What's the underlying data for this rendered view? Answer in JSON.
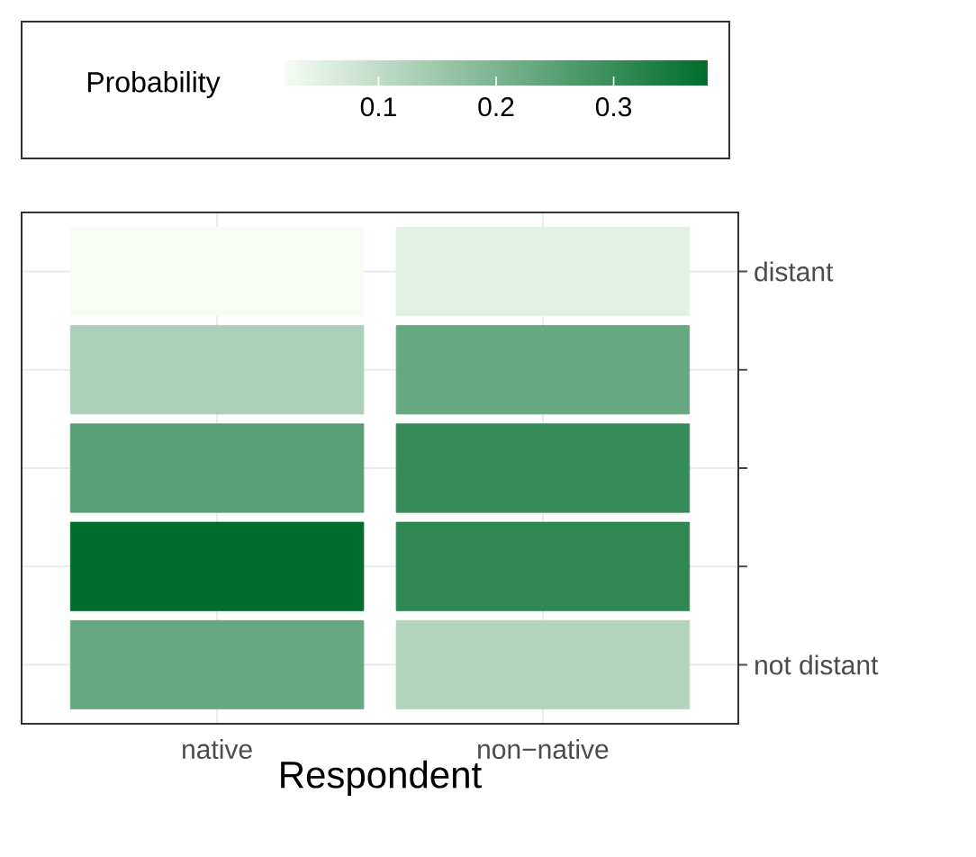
{
  "chart_data": {
    "type": "heatmap",
    "xlabel": "Respondent",
    "clabel": "Probability",
    "categories": [
      "native",
      "non−native"
    ],
    "y_categories": [
      "distant",
      null,
      null,
      null,
      "not distant"
    ],
    "cells": [
      [
        0.02,
        0.05
      ],
      [
        0.13,
        0.23
      ],
      [
        0.25,
        0.3
      ],
      [
        0.38,
        0.31
      ],
      [
        0.23,
        0.12
      ]
    ],
    "clim": [
      0.02,
      0.38
    ],
    "cticks": [
      0.1,
      0.2,
      0.3
    ],
    "grid": true
  }
}
